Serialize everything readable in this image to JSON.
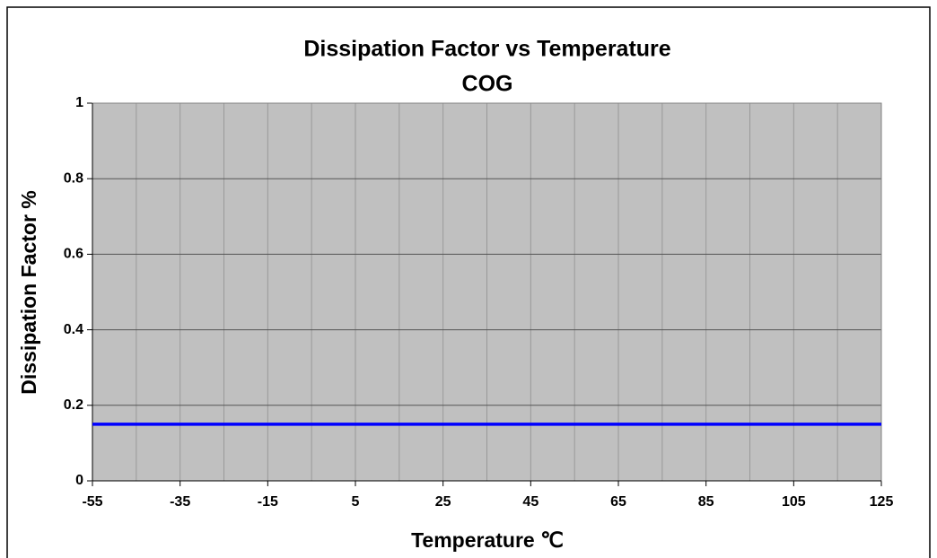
{
  "chart_data": {
    "type": "line",
    "title": "Dissipation Factor vs Temperature",
    "subtitle": "COG",
    "x_label": "Temperature ℃",
    "y_label": "Dissipation Factor %",
    "x": [
      -55,
      125
    ],
    "series": [
      {
        "name": "COG",
        "color": "#0000ff",
        "values": [
          0.15,
          0.15
        ]
      }
    ],
    "xlim": [
      -55,
      125
    ],
    "xticks": [
      -55,
      -35,
      -15,
      5,
      25,
      45,
      65,
      85,
      105,
      125
    ],
    "ylim": [
      0,
      1
    ],
    "yticks": [
      0,
      0.2,
      0.4,
      0.6,
      0.8,
      1
    ],
    "grid": true,
    "plot_background": "#c0c0c0"
  }
}
